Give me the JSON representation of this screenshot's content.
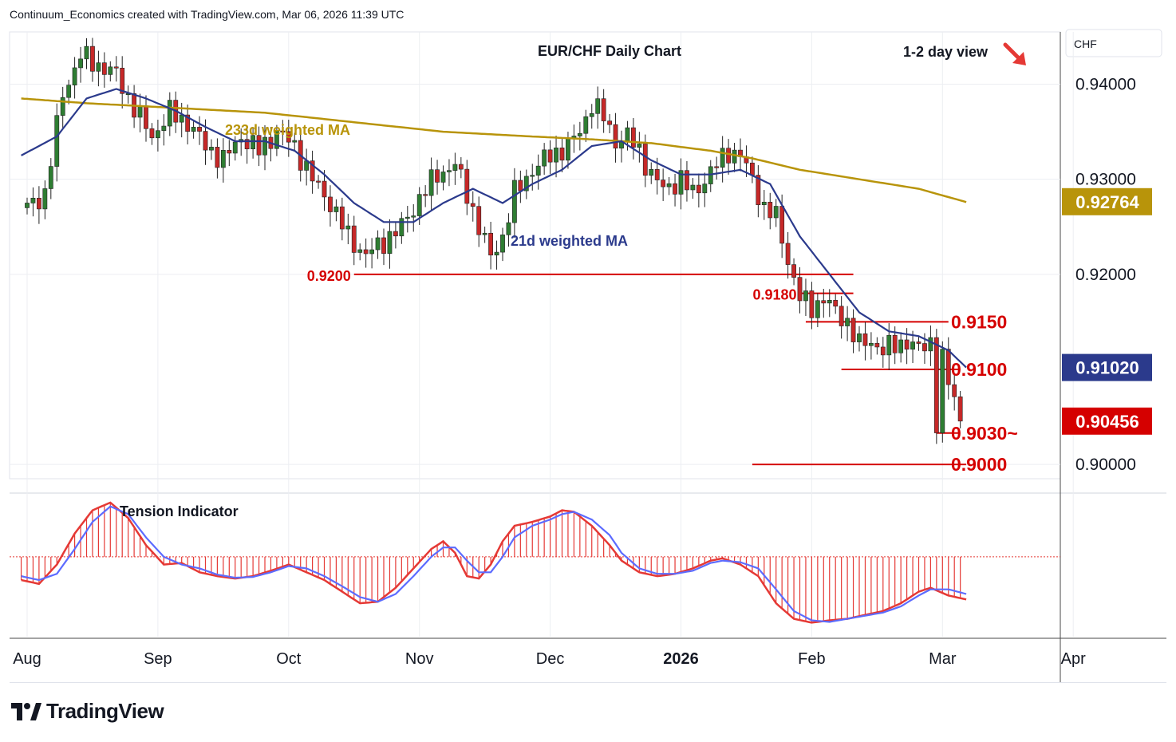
{
  "header": {
    "caption": "Continuum_Economics created with TradingView.com, Mar 06, 2026 11:39 UTC"
  },
  "branding": {
    "logo_text": "TradingView",
    "logo_icon": "tradingview-logo-icon"
  },
  "colors": {
    "up_candle": "#2e7d32",
    "down_candle": "#c62828",
    "ma21": "#2b3a8c",
    "ma233": "#b8940a",
    "level_line": "#d50000",
    "tension_red": "#e53935",
    "tension_blue": "#5c6bff",
    "last_price_bg": "#d50000",
    "ma21_label_bg": "#2b3a8c",
    "ma233_label_bg": "#b8940a"
  },
  "chart_data": {
    "type": "candlestick",
    "title": "EUR/CHF Daily Chart",
    "view_label": "1-2 day view",
    "view_arrow": "down-right-arrow-icon",
    "currency": "CHF",
    "ylim": [
      0.8985,
      0.9455
    ],
    "y_ticks": [
      "0.94000",
      "0.93000",
      "0.92000",
      "0.90000"
    ],
    "y_tick_values": [
      0.94,
      0.93,
      0.92,
      0.9
    ],
    "x_ticks": [
      "Aug",
      "Sep",
      "Oct",
      "Nov",
      "Dec",
      "2026",
      "Feb",
      "Mar",
      "Apr"
    ],
    "x_tick_days": [
      0,
      22,
      44,
      66,
      88,
      110,
      132,
      154,
      176
    ],
    "price_labels": [
      {
        "text": "0.92764",
        "value": 0.92764,
        "kind": "ma233"
      },
      {
        "text": "0.91020",
        "value": 0.9102,
        "kind": "ma21"
      },
      {
        "text": "0.90456",
        "value": 0.90456,
        "kind": "last"
      }
    ],
    "levels": [
      {
        "label": "0.9200",
        "value": 0.92,
        "from_day": 55,
        "to_day": 139,
        "label_side": "left"
      },
      {
        "label": "0.9180",
        "value": 0.918,
        "from_day": 130,
        "to_day": 139,
        "label_side": "left"
      },
      {
        "label": "0.9150",
        "value": 0.915,
        "from_day": 131,
        "to_day": 155,
        "label_side": "right"
      },
      {
        "label": "0.9100",
        "value": 0.91,
        "from_day": 137,
        "to_day": 157,
        "label_side": "right"
      },
      {
        "label": "0.9030~",
        "value": 0.9033,
        "from_day": 153,
        "to_day": 157,
        "label_side": "right"
      },
      {
        "label": "0.9000",
        "value": 0.9,
        "from_day": 122,
        "to_day": 158,
        "label_side": "right"
      }
    ],
    "series_labels": [
      {
        "text": "233d weighted MA",
        "series": "ma233"
      },
      {
        "text": "21d weighted MA",
        "series": "ma21"
      }
    ],
    "ohlc_anchors": [
      [
        0,
        0.927
      ],
      [
        3,
        0.9285
      ],
      [
        6,
        0.939
      ],
      [
        9,
        0.943
      ],
      [
        12,
        0.942
      ],
      [
        15,
        0.941
      ],
      [
        18,
        0.9375
      ],
      [
        21,
        0.9345
      ],
      [
        24,
        0.937
      ],
      [
        27,
        0.936
      ],
      [
        30,
        0.9335
      ],
      [
        33,
        0.932
      ],
      [
        36,
        0.9345
      ],
      [
        39,
        0.933
      ],
      [
        42,
        0.935
      ],
      [
        45,
        0.9335
      ],
      [
        48,
        0.93
      ],
      [
        51,
        0.9275
      ],
      [
        54,
        0.924
      ],
      [
        57,
        0.922
      ],
      [
        60,
        0.9235
      ],
      [
        63,
        0.925
      ],
      [
        66,
        0.928
      ],
      [
        69,
        0.9305
      ],
      [
        72,
        0.9315
      ],
      [
        74,
        0.9285
      ],
      [
        76,
        0.925
      ],
      [
        78,
        0.9218
      ],
      [
        80,
        0.924
      ],
      [
        82,
        0.9285
      ],
      [
        85,
        0.931
      ],
      [
        88,
        0.9325
      ],
      [
        91,
        0.9335
      ],
      [
        93,
        0.935
      ],
      [
        95,
        0.938
      ],
      [
        97,
        0.9365
      ],
      [
        99,
        0.934
      ],
      [
        101,
        0.9345
      ],
      [
        103,
        0.933
      ],
      [
        105,
        0.9305
      ],
      [
        107,
        0.929
      ],
      [
        110,
        0.93
      ],
      [
        112,
        0.9285
      ],
      [
        114,
        0.93
      ],
      [
        116,
        0.9315
      ],
      [
        118,
        0.933
      ],
      [
        120,
        0.9325
      ],
      [
        122,
        0.93
      ],
      [
        124,
        0.927
      ],
      [
        126,
        0.926
      ],
      [
        128,
        0.9215
      ],
      [
        130,
        0.9175
      ],
      [
        132,
        0.9165
      ],
      [
        134,
        0.9175
      ],
      [
        136,
        0.916
      ],
      [
        138,
        0.915
      ],
      [
        140,
        0.9125
      ],
      [
        142,
        0.913
      ],
      [
        144,
        0.912
      ],
      [
        146,
        0.9125
      ],
      [
        148,
        0.913
      ],
      [
        150,
        0.912
      ],
      [
        152,
        0.913
      ],
      [
        153,
        0.9045
      ],
      [
        154,
        0.911
      ],
      [
        155,
        0.9085
      ],
      [
        156,
        0.907
      ],
      [
        157,
        0.9046
      ]
    ],
    "ma233_anchors": [
      [
        -1,
        0.9385
      ],
      [
        10,
        0.938
      ],
      [
        25,
        0.9375
      ],
      [
        40,
        0.937
      ],
      [
        55,
        0.936
      ],
      [
        70,
        0.935
      ],
      [
        85,
        0.9345
      ],
      [
        95,
        0.9342
      ],
      [
        105,
        0.9338
      ],
      [
        115,
        0.933
      ],
      [
        122,
        0.9322
      ],
      [
        130,
        0.931
      ],
      [
        140,
        0.93
      ],
      [
        150,
        0.929
      ],
      [
        158,
        0.9276
      ]
    ],
    "ma21_anchors": [
      [
        -1,
        0.9325
      ],
      [
        5,
        0.9345
      ],
      [
        10,
        0.9385
      ],
      [
        15,
        0.9395
      ],
      [
        20,
        0.9385
      ],
      [
        25,
        0.9372
      ],
      [
        30,
        0.9355
      ],
      [
        35,
        0.934
      ],
      [
        40,
        0.934
      ],
      [
        45,
        0.933
      ],
      [
        50,
        0.9305
      ],
      [
        55,
        0.9275
      ],
      [
        60,
        0.9255
      ],
      [
        65,
        0.9255
      ],
      [
        70,
        0.9275
      ],
      [
        75,
        0.929
      ],
      [
        80,
        0.9275
      ],
      [
        85,
        0.9295
      ],
      [
        90,
        0.931
      ],
      [
        95,
        0.9335
      ],
      [
        100,
        0.934
      ],
      [
        105,
        0.932
      ],
      [
        110,
        0.9305
      ],
      [
        115,
        0.9305
      ],
      [
        120,
        0.931
      ],
      [
        125,
        0.9295
      ],
      [
        130,
        0.924
      ],
      [
        135,
        0.92
      ],
      [
        140,
        0.916
      ],
      [
        145,
        0.914
      ],
      [
        150,
        0.9135
      ],
      [
        155,
        0.912
      ],
      [
        158,
        0.9102
      ]
    ],
    "tension": {
      "title": "Tension Indicator",
      "ylim": [
        -1.0,
        0.75
      ],
      "red_anchors": [
        [
          -1,
          -0.3
        ],
        [
          2,
          -0.35
        ],
        [
          5,
          -0.1
        ],
        [
          8,
          0.3
        ],
        [
          11,
          0.6
        ],
        [
          14,
          0.7
        ],
        [
          17,
          0.5
        ],
        [
          20,
          0.15
        ],
        [
          23,
          -0.1
        ],
        [
          26,
          -0.08
        ],
        [
          29,
          -0.2
        ],
        [
          32,
          -0.25
        ],
        [
          35,
          -0.28
        ],
        [
          38,
          -0.25
        ],
        [
          41,
          -0.18
        ],
        [
          44,
          -0.1
        ],
        [
          47,
          -0.2
        ],
        [
          50,
          -0.3
        ],
        [
          53,
          -0.45
        ],
        [
          56,
          -0.6
        ],
        [
          59,
          -0.58
        ],
        [
          62,
          -0.4
        ],
        [
          65,
          -0.15
        ],
        [
          68,
          0.1
        ],
        [
          70,
          0.2
        ],
        [
          72,
          0.05
        ],
        [
          74,
          -0.25
        ],
        [
          76,
          -0.28
        ],
        [
          78,
          -0.1
        ],
        [
          80,
          0.2
        ],
        [
          82,
          0.4
        ],
        [
          85,
          0.45
        ],
        [
          88,
          0.52
        ],
        [
          90,
          0.6
        ],
        [
          92,
          0.58
        ],
        [
          95,
          0.4
        ],
        [
          98,
          0.15
        ],
        [
          100,
          -0.05
        ],
        [
          103,
          -0.2
        ],
        [
          106,
          -0.25
        ],
        [
          109,
          -0.22
        ],
        [
          112,
          -0.15
        ],
        [
          115,
          -0.05
        ],
        [
          117,
          -0.02
        ],
        [
          120,
          -0.1
        ],
        [
          123,
          -0.25
        ],
        [
          126,
          -0.6
        ],
        [
          129,
          -0.8
        ],
        [
          132,
          -0.85
        ],
        [
          135,
          -0.82
        ],
        [
          138,
          -0.8
        ],
        [
          141,
          -0.75
        ],
        [
          144,
          -0.7
        ],
        [
          147,
          -0.6
        ],
        [
          150,
          -0.45
        ],
        [
          152,
          -0.4
        ],
        [
          155,
          -0.5
        ],
        [
          158,
          -0.55
        ]
      ],
      "blue_anchors": [
        [
          -1,
          -0.25
        ],
        [
          2,
          -0.3
        ],
        [
          5,
          -0.22
        ],
        [
          8,
          0.1
        ],
        [
          11,
          0.45
        ],
        [
          14,
          0.65
        ],
        [
          17,
          0.55
        ],
        [
          20,
          0.25
        ],
        [
          23,
          0.0
        ],
        [
          26,
          -0.1
        ],
        [
          29,
          -0.15
        ],
        [
          32,
          -0.23
        ],
        [
          35,
          -0.27
        ],
        [
          38,
          -0.26
        ],
        [
          41,
          -0.2
        ],
        [
          44,
          -0.12
        ],
        [
          47,
          -0.15
        ],
        [
          50,
          -0.25
        ],
        [
          53,
          -0.38
        ],
        [
          56,
          -0.52
        ],
        [
          59,
          -0.58
        ],
        [
          62,
          -0.48
        ],
        [
          65,
          -0.25
        ],
        [
          68,
          0.0
        ],
        [
          70,
          0.12
        ],
        [
          72,
          0.12
        ],
        [
          74,
          -0.05
        ],
        [
          76,
          -0.2
        ],
        [
          78,
          -0.2
        ],
        [
          80,
          0.0
        ],
        [
          82,
          0.25
        ],
        [
          85,
          0.4
        ],
        [
          88,
          0.48
        ],
        [
          90,
          0.55
        ],
        [
          92,
          0.58
        ],
        [
          95,
          0.48
        ],
        [
          98,
          0.28
        ],
        [
          100,
          0.05
        ],
        [
          103,
          -0.15
        ],
        [
          106,
          -0.22
        ],
        [
          109,
          -0.22
        ],
        [
          112,
          -0.18
        ],
        [
          115,
          -0.08
        ],
        [
          117,
          -0.05
        ],
        [
          120,
          -0.07
        ],
        [
          123,
          -0.15
        ],
        [
          126,
          -0.42
        ],
        [
          129,
          -0.7
        ],
        [
          132,
          -0.82
        ],
        [
          135,
          -0.84
        ],
        [
          138,
          -0.8
        ],
        [
          141,
          -0.76
        ],
        [
          144,
          -0.72
        ],
        [
          147,
          -0.64
        ],
        [
          150,
          -0.5
        ],
        [
          152,
          -0.42
        ],
        [
          155,
          -0.42
        ],
        [
          158,
          -0.48
        ]
      ]
    }
  }
}
